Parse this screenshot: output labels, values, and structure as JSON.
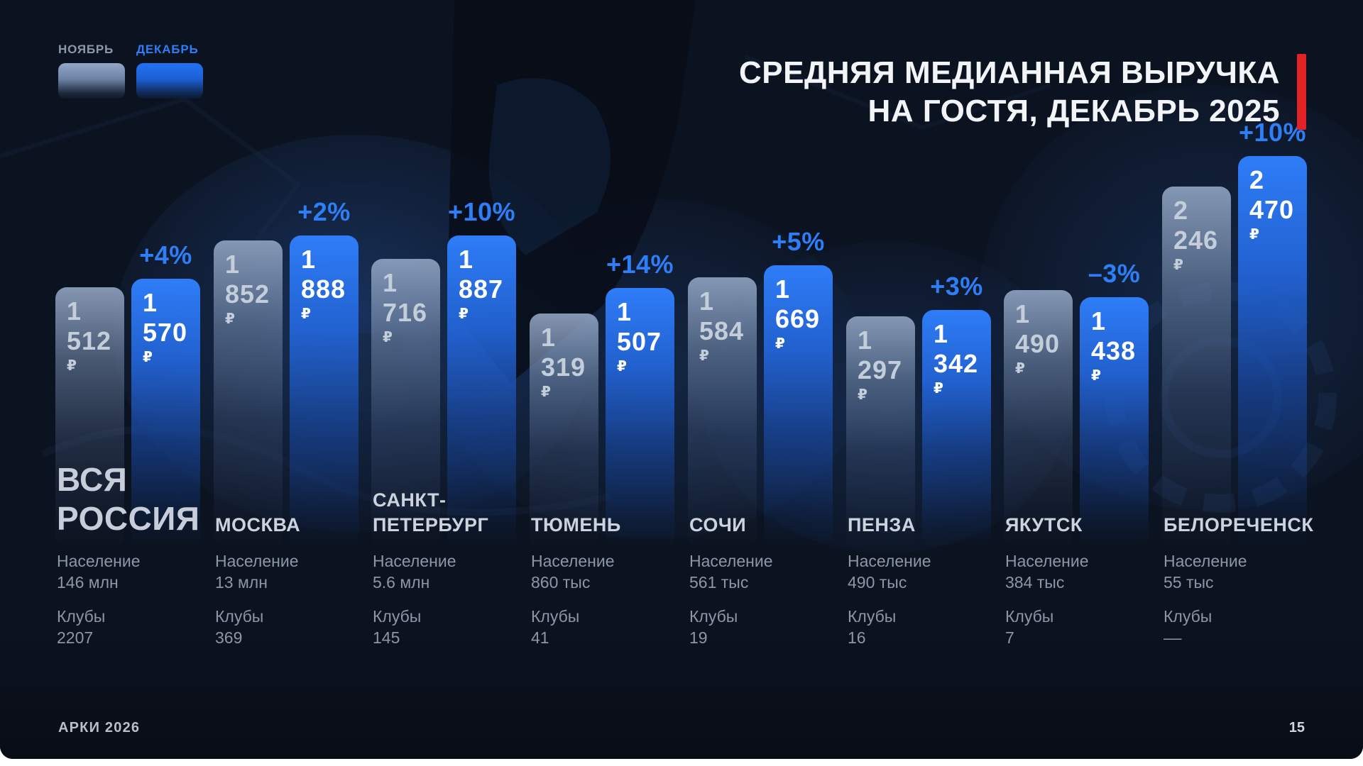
{
  "slide": {
    "title_line1": "СРЕДНЯЯ МЕДИАННАЯ ВЫРУЧКА",
    "title_line2": "НА ГОСТЯ, ДЕКАБРЬ 2025",
    "footer_left": "АРКИ 2026",
    "page_number": "15"
  },
  "legend": {
    "november_label": "НОЯБРЬ",
    "december_label": "ДЕКАБРЬ"
  },
  "labels": {
    "population": "Население",
    "clubs": "Клубы",
    "currency": "₽"
  },
  "colors": {
    "accent_blue": "#2E7DF7",
    "accent_red": "#E32226",
    "nov_bar_top": "#93A7C6",
    "dec_bar_top": "#2272F4",
    "slide_background": "#0C1320",
    "text_primary": "#F2F4F8",
    "text_muted": "#8D96A5"
  },
  "chart_data": {
    "type": "bar",
    "title": "Средняя медианная выручка на гостя, декабрь 2025",
    "unit": "₽",
    "legend_position": "top-left",
    "grid": false,
    "categories": [
      "ВСЯ РОССИЯ",
      "МОСКВА",
      "САНКТ-ПЕТЕРБУРГ",
      "ТЮМЕНЬ",
      "СОЧИ",
      "ПЕНЗА",
      "ЯКУТСК",
      "БЕЛОРЕЧЕНСК"
    ],
    "series": [
      {
        "name": "НОЯБРЬ",
        "values": [
          1512,
          1852,
          1716,
          1319,
          1584,
          1297,
          1490,
          2246
        ]
      },
      {
        "name": "ДЕКАБРЬ",
        "values": [
          1570,
          1888,
          1887,
          1507,
          1669,
          1342,
          1438,
          2470
        ]
      }
    ],
    "groups": [
      {
        "city": "ВСЯ РОССИЯ",
        "city_lines": [
          "ВСЯ",
          "РОССИЯ"
        ],
        "big_title": true,
        "nov": 1512,
        "nov_label": "1 512",
        "dec": 1570,
        "dec_label": "1 570",
        "change": "+4%",
        "population": "146 млн",
        "clubs": "2207"
      },
      {
        "city": "МОСКВА",
        "city_lines": [
          "МОСКВА"
        ],
        "big_title": false,
        "nov": 1852,
        "nov_label": "1 852",
        "dec": 1888,
        "dec_label": "1 888",
        "change": "+2%",
        "population": "13 млн",
        "clubs": "369"
      },
      {
        "city": "САНКТ-ПЕТЕРБУРГ",
        "city_lines": [
          "САНКТ-",
          "ПЕТЕРБУРГ"
        ],
        "big_title": false,
        "nov": 1716,
        "nov_label": "1 716",
        "dec": 1887,
        "dec_label": "1 887",
        "change": "+10%",
        "population": "5.6 млн",
        "clubs": "145"
      },
      {
        "city": "ТЮМЕНЬ",
        "city_lines": [
          "ТЮМЕНЬ"
        ],
        "big_title": false,
        "nov": 1319,
        "nov_label": "1 319",
        "dec": 1507,
        "dec_label": "1 507",
        "change": "+14%",
        "population": "860 тыс",
        "clubs": "41"
      },
      {
        "city": "СОЧИ",
        "city_lines": [
          "СОЧИ"
        ],
        "big_title": false,
        "nov": 1584,
        "nov_label": "1 584",
        "dec": 1669,
        "dec_label": "1 669",
        "change": "+5%",
        "population": "561 тыс",
        "clubs": "19"
      },
      {
        "city": "ПЕНЗА",
        "city_lines": [
          "ПЕНЗА"
        ],
        "big_title": false,
        "nov": 1297,
        "nov_label": "1 297",
        "dec": 1342,
        "dec_label": "1 342",
        "change": "+3%",
        "population": "490 тыс",
        "clubs": "16"
      },
      {
        "city": "ЯКУТСК",
        "city_lines": [
          "ЯКУТСК"
        ],
        "big_title": false,
        "nov": 1490,
        "nov_label": "1 490",
        "dec": 1438,
        "dec_label": "1 438",
        "change": "–3%",
        "population": "384 тыс",
        "clubs": "7"
      },
      {
        "city": "БЕЛОРЕЧЕНСК",
        "city_lines": [
          "БЕЛОРЕЧЕНСК"
        ],
        "big_title": false,
        "nov": 2246,
        "nov_label": "2 246",
        "dec": 2470,
        "dec_label": "2 470",
        "change": "+10%",
        "population": "55 тыс",
        "clubs": "––"
      }
    ]
  }
}
